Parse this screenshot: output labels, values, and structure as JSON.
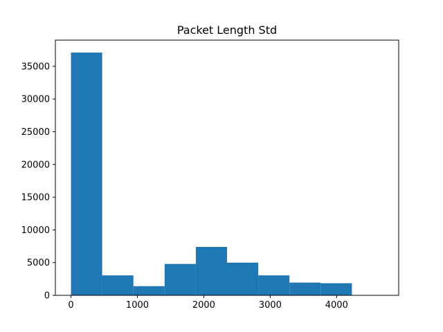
{
  "chart_data": {
    "type": "bar",
    "title": "Packet Length Std",
    "xlabel": "",
    "ylabel": "",
    "bar_color": "#1f77b4",
    "grid": false,
    "xlim": [
      -235,
      4935
    ],
    "ylim": [
      0,
      39000
    ],
    "x_ticks": [
      0,
      1000,
      2000,
      3000,
      4000
    ],
    "y_ticks": [
      0,
      5000,
      10000,
      15000,
      20000,
      25000,
      30000,
      35000
    ],
    "bins": [
      {
        "x0": 0,
        "x1": 470,
        "count": 37100
      },
      {
        "x0": 470,
        "x1": 940,
        "count": 3050
      },
      {
        "x0": 940,
        "x1": 1410,
        "count": 1400
      },
      {
        "x0": 1410,
        "x1": 1880,
        "count": 4800
      },
      {
        "x0": 1880,
        "x1": 2350,
        "count": 7400
      },
      {
        "x0": 2350,
        "x1": 2820,
        "count": 5000
      },
      {
        "x0": 2820,
        "x1": 3290,
        "count": 3050
      },
      {
        "x0": 3290,
        "x1": 3760,
        "count": 1950
      },
      {
        "x0": 3760,
        "x1": 4230,
        "count": 1850
      },
      {
        "x0": 4230,
        "x1": 4700,
        "count": 0
      }
    ]
  }
}
